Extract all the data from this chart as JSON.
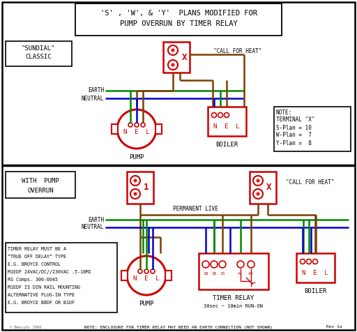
{
  "title_line1": "'S' , 'W', & 'Y'  PLANS MODIFIED FOR",
  "title_line2": "PUMP OVERRUN BY TIMER RELAY",
  "bg_color": "#ffffff",
  "border_color": "#000000",
  "red_color": "#cc0000",
  "green_color": "#008800",
  "blue_color": "#0000cc",
  "brown_color": "#7B3F00",
  "gray_color": "#666666",
  "bottom_note": "NOTE: ENCLOSURE FOR TIMER RELAY MAY NEED AN EARTH CONNECTION (NOT SHOWN)",
  "rev_note": "Rev 1a",
  "copyright": "© BencySc 2000"
}
